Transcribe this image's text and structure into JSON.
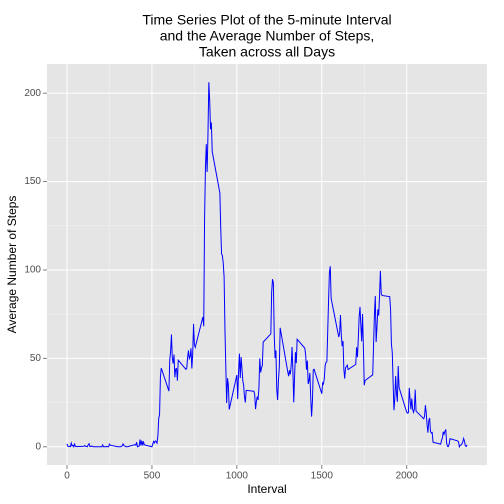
{
  "chart_data": {
    "type": "line",
    "title": [
      "Time Series Plot of the 5-minute Interval",
      "and the Average Number of Steps,",
      "Taken across all Days"
    ],
    "x_label": "Interval",
    "y_label": "Average Number of Steps",
    "color": "#0000ff",
    "grid": true,
    "xlim": [
      -117.75,
      2472.75
    ],
    "xticks": [
      0,
      500,
      1000,
      1500,
      2000
    ],
    "ylim": [
      -10.3,
      216.5
    ],
    "yticks": [
      0,
      50,
      100,
      150,
      200
    ],
    "x": [
      0,
      5,
      10,
      15,
      20,
      25,
      30,
      35,
      40,
      45,
      50,
      55,
      100,
      105,
      110,
      115,
      120,
      125,
      130,
      135,
      140,
      145,
      150,
      155,
      200,
      205,
      210,
      215,
      220,
      225,
      230,
      235,
      240,
      245,
      250,
      255,
      300,
      305,
      310,
      315,
      320,
      325,
      330,
      335,
      340,
      345,
      350,
      355,
      400,
      405,
      410,
      415,
      420,
      425,
      430,
      435,
      440,
      445,
      450,
      455,
      500,
      505,
      510,
      515,
      520,
      525,
      530,
      535,
      540,
      545,
      550,
      555,
      600,
      605,
      610,
      615,
      620,
      625,
      630,
      635,
      640,
      645,
      650,
      655,
      700,
      705,
      710,
      715,
      720,
      725,
      730,
      735,
      740,
      745,
      750,
      755,
      800,
      805,
      810,
      815,
      820,
      825,
      830,
      835,
      840,
      845,
      850,
      855,
      900,
      905,
      910,
      915,
      920,
      925,
      930,
      935,
      940,
      945,
      950,
      955,
      1000,
      1005,
      1010,
      1015,
      1020,
      1025,
      1030,
      1035,
      1040,
      1045,
      1050,
      1055,
      1100,
      1105,
      1110,
      1115,
      1120,
      1125,
      1130,
      1135,
      1140,
      1145,
      1150,
      1155,
      1200,
      1205,
      1210,
      1215,
      1220,
      1225,
      1230,
      1235,
      1240,
      1245,
      1250,
      1255,
      1300,
      1305,
      1310,
      1315,
      1320,
      1325,
      1330,
      1335,
      1340,
      1345,
      1350,
      1355,
      1400,
      1405,
      1410,
      1415,
      1420,
      1425,
      1430,
      1435,
      1440,
      1445,
      1450,
      1455,
      1500,
      1505,
      1510,
      1515,
      1520,
      1525,
      1530,
      1535,
      1540,
      1545,
      1550,
      1555,
      1600,
      1605,
      1610,
      1615,
      1620,
      1625,
      1630,
      1635,
      1640,
      1645,
      1650,
      1655,
      1700,
      1705,
      1710,
      1715,
      1720,
      1725,
      1730,
      1735,
      1740,
      1745,
      1750,
      1755,
      1800,
      1805,
      1810,
      1815,
      1820,
      1825,
      1830,
      1835,
      1840,
      1845,
      1850,
      1855,
      1900,
      1905,
      1910,
      1915,
      1920,
      1925,
      1930,
      1935,
      1940,
      1945,
      1950,
      1955,
      2000,
      2005,
      2010,
      2015,
      2020,
      2025,
      2030,
      2035,
      2040,
      2045,
      2050,
      2055,
      2100,
      2105,
      2110,
      2115,
      2120,
      2125,
      2130,
      2135,
      2140,
      2145,
      2150,
      2155,
      2200,
      2205,
      2210,
      2215,
      2220,
      2225,
      2230,
      2235,
      2240,
      2245,
      2250,
      2255,
      2300,
      2305,
      2310,
      2315,
      2320,
      2325,
      2330,
      2335,
      2340,
      2345,
      2350,
      2355
    ],
    "values": [
      1.7,
      0.3,
      0.1,
      0.2,
      0.1,
      2.1,
      0.5,
      0.9,
      0,
      1.5,
      0.3,
      0.1,
      0.3,
      0.7,
      0.2,
      0.3,
      0,
      1.1,
      1.8,
      0.2,
      0.2,
      0.4,
      0.3,
      0,
      0,
      0,
      1.1,
      0,
      0,
      0.1,
      0,
      0.2,
      0,
      0,
      1.5,
      0.9,
      0,
      0,
      0,
      0,
      0.2,
      0.6,
      1.6,
      0.6,
      0.5,
      0.1,
      0,
      0,
      1.2,
      0.9,
      2.6,
      0,
      0.3,
      0.4,
      4.1,
      0.7,
      3.5,
      0.8,
      3.1,
      1.1,
      0,
      1.6,
      3,
      2.2,
      3.3,
      3,
      2.1,
      6.1,
      16,
      18.3,
      39.5,
      44.5,
      31.5,
      49.3,
      53.8,
      63.5,
      50,
      47.1,
      52.2,
      39.3,
      44,
      44.2,
      37.4,
      49,
      43.8,
      44.4,
      50.5,
      54.5,
      49.9,
      51,
      55.7,
      44.3,
      52.3,
      69.5,
      57.8,
      56.2,
      73.4,
      68.2,
      129.4,
      157.5,
      171.2,
      155.4,
      177.3,
      206.2,
      195.9,
      179.6,
      183.4,
      167,
      143.5,
      124,
      109.1,
      108.1,
      103.7,
      95.97,
      66.2,
      45.2,
      24.8,
      38.8,
      34.98,
      21.1,
      40.6,
      26.98,
      42.4,
      52.7,
      38.9,
      50.8,
      44.3,
      37.4,
      34.7,
      28.3,
      25.1,
      31.9,
      31.4,
      29.7,
      21.3,
      25.5,
      28.4,
      26.5,
      33.4,
      50,
      42,
      44.6,
      46,
      59.2,
      63.9,
      87.7,
      94.8,
      92.8,
      63.4,
      50.2,
      54.5,
      32.4,
      26.5,
      37.7,
      45.1,
      67.3,
      42.3,
      39.9,
      43.3,
      40.98,
      46.2,
      56.4,
      42.8,
      25.1,
      39.97,
      53.5,
      47.3,
      60.8,
      55.8,
      51.96,
      43.6,
      48.7,
      35.5,
      37.5,
      41.8,
      27.5,
      17.1,
      26.1,
      43.6,
      43.8,
      30,
      36.1,
      35.5,
      38.8,
      46,
      47.8,
      48.1,
      65.3,
      82.9,
      98.7,
      102.1,
      83.96,
      62.1,
      64.1,
      74.5,
      63.2,
      56.9,
      59.8,
      43.9,
      38.6,
      44.7,
      45.5,
      46.2,
      43.7,
      46.6,
      56.3,
      50.7,
      61.2,
      73.4,
      79.1,
      68.9,
      59.7,
      75.1,
      56.5,
      34.8,
      37.5,
      40.7,
      58,
      74.7,
      85.3,
      59.3,
      67.8,
      77.7,
      74.2,
      85.3,
      99.5,
      86.6,
      85.6,
      84.9,
      77.8,
      58,
      53.4,
      36.3,
      20.7,
      27.4,
      40,
      30.2,
      25.5,
      45.7,
      33.5,
      19.6,
      19,
      19.3,
      33.3,
      26.8,
      21.2,
      27.3,
      21.3,
      19.5,
      21.3,
      32.3,
      20.2,
      15.9,
      17.2,
      23.5,
      19.2,
      12.5,
      8,
      14.7,
      16.3,
      8.7,
      7.8,
      8.1,
      2.6,
      1.5,
      3.7,
      4.8,
      8.5,
      7.1,
      8.7,
      9.8,
      2.2,
      0.3,
      0.1,
      1.6,
      4.6,
      3.3,
      2.8,
      0,
      0.8,
      1,
      1.6,
      2.6,
      4.7,
      3.3,
      0.6,
      0.2,
      1.1
    ]
  }
}
